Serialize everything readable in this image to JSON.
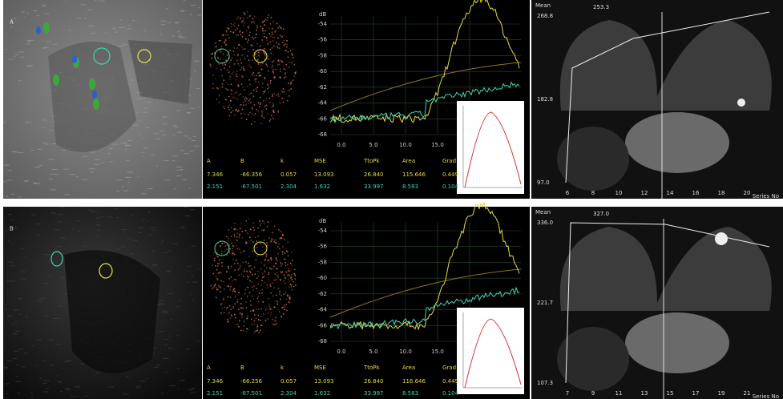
{
  "panels": [
    {
      "label": "A",
      "tic": {
        "y_unit": "dB",
        "yticks": [
          "-54",
          "-56",
          "-58",
          "-60",
          "-62",
          "-64",
          "-66",
          "-68"
        ],
        "xticks": [
          "0.0",
          "5.0",
          "10.0",
          "15.0",
          "20.0"
        ],
        "table": {
          "headers": [
            "A",
            "B",
            "k",
            "MSE",
            "TtoPk",
            "Area",
            "Grad"
          ],
          "rows": [
            [
              "7.346",
              "-66.356",
              "0.057",
              "13.093",
              "26.840",
              "115.646",
              "0.449"
            ],
            [
              "2.151",
              "-67.501",
              "2.304",
              "1.632",
              "33.997",
              "8.583",
              "0.104"
            ]
          ]
        }
      },
      "mri": {
        "title": "Mean",
        "value": "253.3",
        "yticks": [
          "268.8",
          "182.8",
          "97.0"
        ],
        "xticks": [
          "6",
          "8",
          "10",
          "12",
          "14",
          "16",
          "18",
          "20"
        ],
        "xlabel": "Series No"
      }
    },
    {
      "label": "B",
      "tic": {
        "y_unit": "dB",
        "yticks": [
          "-54",
          "-56",
          "-58",
          "-60",
          "-62",
          "-64",
          "-66",
          "-68"
        ],
        "xticks": [
          "0.0",
          "5.0",
          "10.0",
          "15.0",
          "20.0"
        ],
        "table": {
          "headers": [
            "A",
            "B",
            "k",
            "MSE",
            "TtoPk",
            "Area",
            "Grad"
          ],
          "rows": [
            [
              "7.346",
              "-66.256",
              "0.057",
              "13.093",
              "26.840",
              "116.646",
              "0.449"
            ],
            [
              "2.151",
              "-67.501",
              "2.304",
              "1.632",
              "33.997",
              "8.583",
              "0.104"
            ]
          ]
        }
      },
      "mri": {
        "title": "Mean",
        "value": "327.0",
        "yticks": [
          "336.0",
          "221.7",
          "107.3"
        ],
        "xticks": [
          "7",
          "9",
          "11",
          "13",
          "15",
          "17",
          "19",
          "21"
        ],
        "xlabel": "Series No"
      }
    }
  ]
}
